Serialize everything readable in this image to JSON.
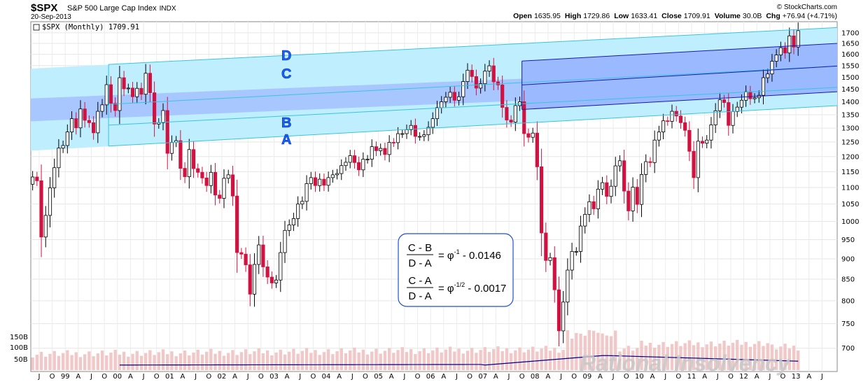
{
  "header": {
    "symbol": "$SPX",
    "name": "S&P 500 Large Cap Index",
    "exchange": "INDX",
    "date": "20-Sep-2013",
    "credit": "© StockCharts.com",
    "open_label": "Open",
    "open": "1635.95",
    "high_label": "High",
    "high": "1729.86",
    "low_label": "Low",
    "low": "1633.41",
    "close_label": "Close",
    "close": "1709.91",
    "volume_label": "Volume",
    "volume": "30.0B",
    "chg_label": "Chg",
    "chg": "+76.94 (+4.71%)",
    "series_label": "$SPX (Monthly) 1709.91"
  },
  "channel_labels": [
    "D",
    "C",
    "B",
    "A"
  ],
  "formula": {
    "row1_num": "C - B",
    "row1_den": "D - A",
    "row1_rhs": "= φ",
    "row1_exp": "-1",
    "row1_tail": " - 0.0146",
    "row2_num": "C - A",
    "row2_den": "D - A",
    "row2_rhs": "= φ",
    "row2_exp": "-1/2",
    "row2_tail": " - 0.0017"
  },
  "watermark": "Rational Insolvency",
  "colors": {
    "up": "#ffffff",
    "down": "#d11240",
    "outer_band": "#bfeeff",
    "inner_band": "#a8c6ff",
    "channel_line": "#39c4e0",
    "inner_line": "#1a1ab0",
    "volume_bar": "#f0c8c8",
    "volume_ma": "#00008b"
  },
  "chart_data": {
    "type": "candlestick",
    "scale": "log",
    "ylim": [
      690,
      1740
    ],
    "y_ticks": [
      700,
      750,
      800,
      850,
      900,
      950,
      1000,
      1050,
      1100,
      1150,
      1200,
      1250,
      1300,
      1350,
      1400,
      1450,
      1500,
      1550,
      1600,
      1650,
      1700
    ],
    "x_ticks": [
      {
        "label": "J",
        "t": 1998.5
      },
      {
        "label": "O",
        "t": 1998.75
      },
      {
        "label": "99",
        "t": 1999.0
      },
      {
        "label": "A",
        "t": 1999.25
      },
      {
        "label": "J",
        "t": 1999.5
      },
      {
        "label": "O",
        "t": 1999.75
      },
      {
        "label": "00",
        "t": 2000.0
      },
      {
        "label": "A",
        "t": 2000.25
      },
      {
        "label": "J",
        "t": 2000.5
      },
      {
        "label": "O",
        "t": 2000.75
      },
      {
        "label": "01",
        "t": 2001.0
      },
      {
        "label": "A",
        "t": 2001.25
      },
      {
        "label": "J",
        "t": 2001.5
      },
      {
        "label": "O",
        "t": 2001.75
      },
      {
        "label": "02",
        "t": 2002.0
      },
      {
        "label": "A",
        "t": 2002.25
      },
      {
        "label": "J",
        "t": 2002.5
      },
      {
        "label": "O",
        "t": 2002.75
      },
      {
        "label": "03",
        "t": 2003.0
      },
      {
        "label": "A",
        "t": 2003.25
      },
      {
        "label": "J",
        "t": 2003.5
      },
      {
        "label": "O",
        "t": 2003.75
      },
      {
        "label": "04",
        "t": 2004.0
      },
      {
        "label": "A",
        "t": 2004.25
      },
      {
        "label": "J",
        "t": 2004.5
      },
      {
        "label": "O",
        "t": 2004.75
      },
      {
        "label": "05",
        "t": 2005.0
      },
      {
        "label": "A",
        "t": 2005.25
      },
      {
        "label": "J",
        "t": 2005.5
      },
      {
        "label": "O",
        "t": 2005.75
      },
      {
        "label": "06",
        "t": 2006.0
      },
      {
        "label": "A",
        "t": 2006.25
      },
      {
        "label": "J",
        "t": 2006.5
      },
      {
        "label": "O",
        "t": 2006.75
      },
      {
        "label": "07",
        "t": 2007.0
      },
      {
        "label": "A",
        "t": 2007.25
      },
      {
        "label": "J",
        "t": 2007.5
      },
      {
        "label": "O",
        "t": 2007.75
      },
      {
        "label": "08",
        "t": 2008.0
      },
      {
        "label": "A",
        "t": 2008.25
      },
      {
        "label": "J",
        "t": 2008.5
      },
      {
        "label": "O",
        "t": 2008.75
      },
      {
        "label": "09",
        "t": 2009.0
      },
      {
        "label": "A",
        "t": 2009.25
      },
      {
        "label": "J",
        "t": 2009.5
      },
      {
        "label": "O",
        "t": 2009.75
      },
      {
        "label": "10",
        "t": 2010.0
      },
      {
        "label": "A",
        "t": 2010.25
      },
      {
        "label": "J",
        "t": 2010.5
      },
      {
        "label": "O",
        "t": 2010.75
      },
      {
        "label": "11",
        "t": 2011.0
      },
      {
        "label": "A",
        "t": 2011.25
      },
      {
        "label": "J",
        "t": 2011.5
      },
      {
        "label": "O",
        "t": 2011.75
      },
      {
        "label": "12",
        "t": 2012.0
      },
      {
        "label": "A",
        "t": 2012.25
      },
      {
        "label": "J",
        "t": 2012.5
      },
      {
        "label": "O",
        "t": 2012.75
      },
      {
        "label": "13",
        "t": 2013.0
      },
      {
        "label": "A",
        "t": 2013.25
      },
      {
        "label": "J",
        "t": 2013.5
      }
    ],
    "x_range": [
      1998.34,
      2013.79
    ],
    "monthly_close": [
      1133,
      1121,
      957,
      1017,
      1099,
      1163,
      1229,
      1238,
      1286,
      1335,
      1301,
      1372,
      1329,
      1320,
      1283,
      1363,
      1388,
      1469,
      1394,
      1366,
      1498,
      1452,
      1455,
      1420,
      1454,
      1430,
      1517,
      1436,
      1315,
      1320,
      1366,
      1211,
      1249,
      1255,
      1161,
      1134,
      1224,
      1160,
      1148,
      1130,
      1106,
      1148,
      1077,
      1067,
      1129,
      1140,
      1074,
      916,
      912,
      885,
      815,
      886,
      936,
      880,
      855,
      841,
      848,
      916,
      975,
      990,
      1008,
      1050,
      1058,
      1112,
      1131,
      1106,
      1126,
      1107,
      1131,
      1140,
      1144,
      1170,
      1181,
      1203,
      1180,
      1156,
      1191,
      1191,
      1234,
      1220,
      1228,
      1207,
      1249,
      1248,
      1280,
      1280,
      1294,
      1310,
      1270,
      1270,
      1276,
      1303,
      1335,
      1377,
      1400,
      1418,
      1438,
      1406,
      1420,
      1482,
      1530,
      1503,
      1455,
      1473,
      1526,
      1549,
      1481,
      1468,
      1378,
      1330,
      1322,
      1385,
      1400,
      1280,
      1267,
      1282,
      1166,
      968,
      896,
      903,
      825,
      735,
      797,
      872,
      919,
      919,
      987,
      1020,
      1057,
      1036,
      1095,
      1115,
      1073,
      1104,
      1169,
      1186,
      1089,
      1030,
      1101,
      1049,
      1141,
      1183,
      1180,
      1257,
      1286,
      1327,
      1325,
      1363,
      1345,
      1320,
      1292,
      1218,
      1131,
      1253,
      1246,
      1257,
      1312,
      1365,
      1408,
      1397,
      1310,
      1362,
      1379,
      1406,
      1440,
      1412,
      1416,
      1426,
      1498,
      1514,
      1569,
      1597,
      1630,
      1606,
      1685,
      1633,
      1710
    ],
    "volume_label_ticks": [
      "150B",
      "100B",
      "50B"
    ],
    "channel": {
      "A": {
        "t": [
          1999.83,
          2013.79
        ],
        "v": [
          1236,
          1385
        ]
      },
      "D": {
        "t": [
          1999.83,
          2013.79
        ],
        "v": [
          1555,
          1725
        ]
      },
      "C": {
        "t": [
          1999.83,
          2013.79
        ],
        "v": [
          1390,
          1548
        ]
      },
      "B": {
        "t": [
          1999.83,
          2013.79
        ],
        "v": [
          1311,
          1458
        ]
      },
      "inner_D": {
        "t": [
          2007.75,
          2013.79
        ],
        "v": [
          1570,
          1650
        ]
      },
      "inner_A": {
        "t": [
          2007.75,
          2013.79
        ],
        "v": [
          1370,
          1440
        ]
      }
    }
  }
}
